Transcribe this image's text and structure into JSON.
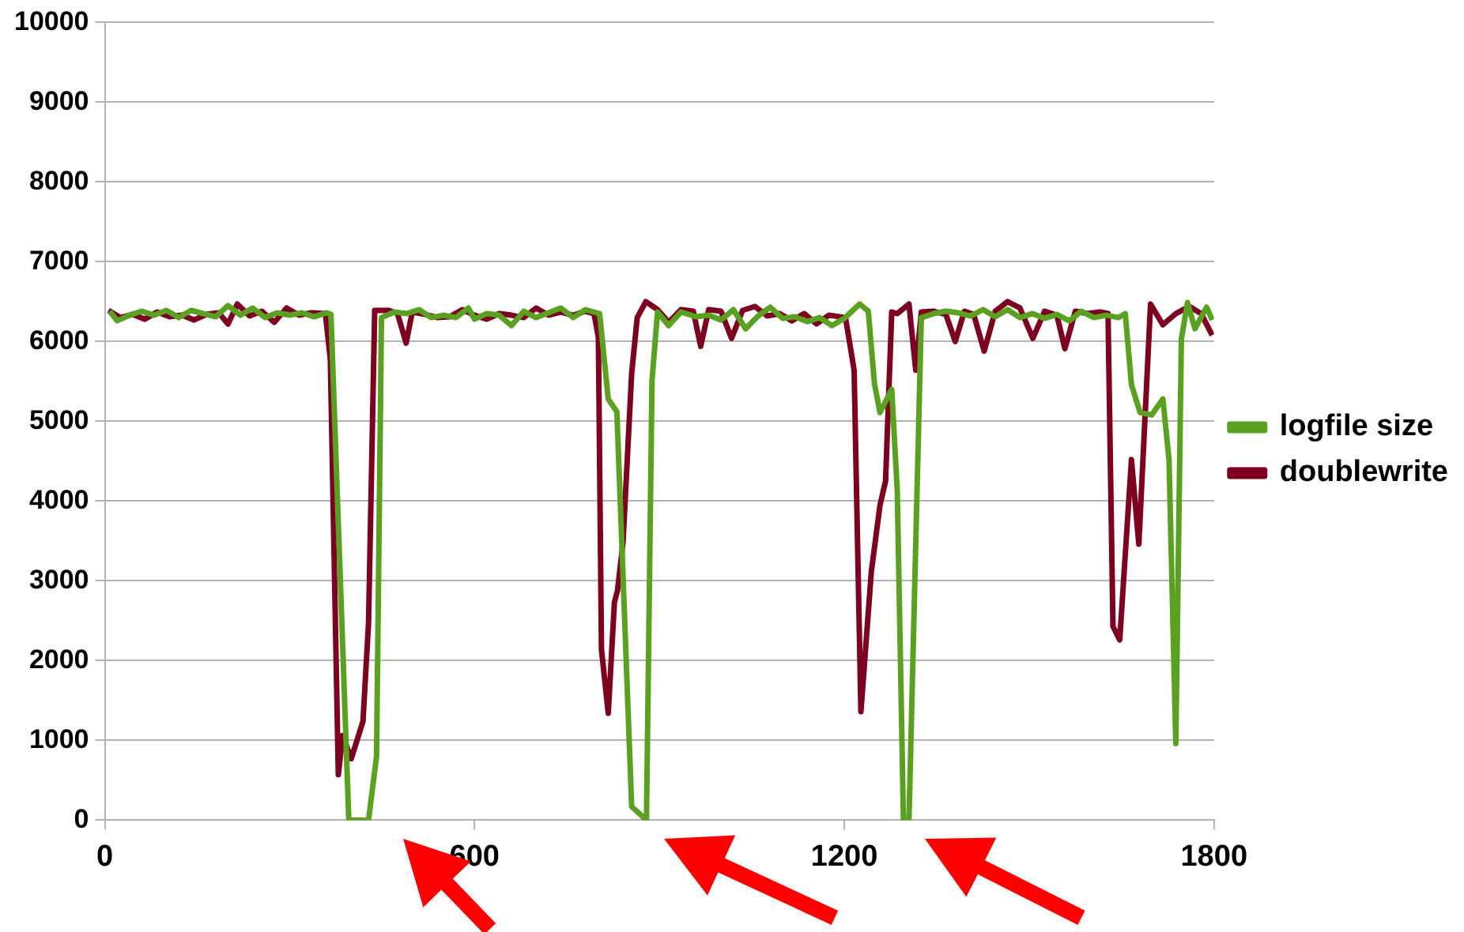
{
  "chart_data": {
    "type": "line",
    "xlim": [
      0,
      1800
    ],
    "xticks": [
      0,
      600,
      1200,
      1800
    ],
    "ylim": [
      0,
      10000
    ],
    "yticks": [
      0,
      1000,
      2000,
      3000,
      4000,
      5000,
      6000,
      7000,
      8000,
      9000,
      10000
    ],
    "grid": "y",
    "legend": "right",
    "marker": "none",
    "line_style": "solid",
    "series": [
      {
        "name": "logfile size",
        "color": "#5ba121",
        "x": [
          8,
          20,
          40,
          60,
          80,
          100,
          120,
          140,
          160,
          180,
          200,
          220,
          240,
          260,
          280,
          300,
          320,
          340,
          360,
          367,
          396,
          428,
          441,
          449,
          470,
          490,
          510,
          530,
          550,
          570,
          590,
          600,
          620,
          640,
          660,
          680,
          700,
          720,
          740,
          760,
          780,
          803,
          817,
          831,
          855,
          879,
          888,
          897,
          915,
          935,
          960,
          980,
          1000,
          1020,
          1040,
          1060,
          1080,
          1100,
          1120,
          1140,
          1160,
          1180,
          1200,
          1225,
          1239,
          1249,
          1258,
          1277,
          1286,
          1296,
          1305,
          1325,
          1345,
          1365,
          1385,
          1405,
          1425,
          1445,
          1465,
          1485,
          1505,
          1525,
          1545,
          1565,
          1585,
          1605,
          1625,
          1645,
          1656,
          1666,
          1680,
          1699,
          1717,
          1727,
          1738,
          1747,
          1757,
          1769,
          1788,
          1797
        ],
        "values": [
          6380,
          6260,
          6330,
          6380,
          6330,
          6390,
          6300,
          6390,
          6350,
          6310,
          6450,
          6330,
          6420,
          6300,
          6360,
          6330,
          6360,
          6310,
          6360,
          6340,
          0,
          0,
          800,
          6300,
          6370,
          6350,
          6400,
          6300,
          6330,
          6300,
          6420,
          6280,
          6350,
          6330,
          6200,
          6380,
          6300,
          6360,
          6420,
          6300,
          6400,
          6350,
          5280,
          5120,
          170,
          0,
          5510,
          6370,
          6200,
          6370,
          6310,
          6330,
          6270,
          6400,
          6160,
          6320,
          6430,
          6290,
          6310,
          6250,
          6300,
          6200,
          6290,
          6470,
          6380,
          5470,
          5110,
          5400,
          4130,
          0,
          0,
          6300,
          6350,
          6380,
          6360,
          6320,
          6400,
          6310,
          6400,
          6300,
          6350,
          6290,
          6340,
          6260,
          6380,
          6300,
          6330,
          6300,
          6350,
          5460,
          5110,
          5080,
          5280,
          4520,
          960,
          6030,
          6490,
          6160,
          6430,
          6270
        ]
      },
      {
        "name": "doublewrite",
        "color": "#7e0021",
        "x": [
          6,
          25,
          45,
          65,
          85,
          105,
          125,
          145,
          165,
          185,
          200,
          215,
          235,
          255,
          275,
          295,
          315,
          335,
          358,
          366,
          379,
          386,
          400,
          419,
          428,
          438,
          461,
          475,
          489,
          499,
          520,
          540,
          560,
          580,
          600,
          620,
          640,
          660,
          680,
          700,
          720,
          740,
          760,
          780,
          794,
          801,
          806,
          817,
          827,
          832,
          841,
          855,
          864,
          878,
          897,
          915,
          935,
          955,
          967,
          980,
          1000,
          1017,
          1035,
          1055,
          1075,
          1095,
          1115,
          1135,
          1155,
          1175,
          1202,
          1216,
          1227,
          1244,
          1258,
          1267,
          1277,
          1286,
          1305,
          1316,
          1325,
          1345,
          1365,
          1380,
          1395,
          1410,
          1427,
          1445,
          1465,
          1485,
          1506,
          1525,
          1545,
          1558,
          1575,
          1595,
          1615,
          1628,
          1636,
          1647,
          1666,
          1678,
          1697,
          1717,
          1738,
          1760,
          1779,
          1797
        ],
        "values": [
          6390,
          6300,
          6340,
          6280,
          6370,
          6310,
          6330,
          6270,
          6340,
          6360,
          6220,
          6470,
          6320,
          6380,
          6240,
          6420,
          6330,
          6360,
          6350,
          5780,
          570,
          1060,
          770,
          1240,
          2470,
          6390,
          6390,
          6350,
          5980,
          6370,
          6340,
          6300,
          6310,
          6400,
          6330,
          6280,
          6350,
          6330,
          6300,
          6420,
          6330,
          6370,
          6330,
          6380,
          6350,
          6050,
          2140,
          1340,
          2730,
          2880,
          3480,
          5600,
          6300,
          6500,
          6400,
          6240,
          6400,
          6380,
          5940,
          6400,
          6380,
          6040,
          6390,
          6440,
          6320,
          6350,
          6260,
          6350,
          6220,
          6330,
          6300,
          5640,
          1360,
          3120,
          3950,
          4250,
          6370,
          6350,
          6470,
          5640,
          6370,
          6380,
          6340,
          6000,
          6380,
          6340,
          5880,
          6380,
          6500,
          6420,
          6040,
          6380,
          6330,
          5910,
          6380,
          6350,
          6370,
          6350,
          2430,
          2260,
          4520,
          3460,
          6470,
          6210,
          6350,
          6440,
          6350,
          6080
        ]
      }
    ]
  }
}
